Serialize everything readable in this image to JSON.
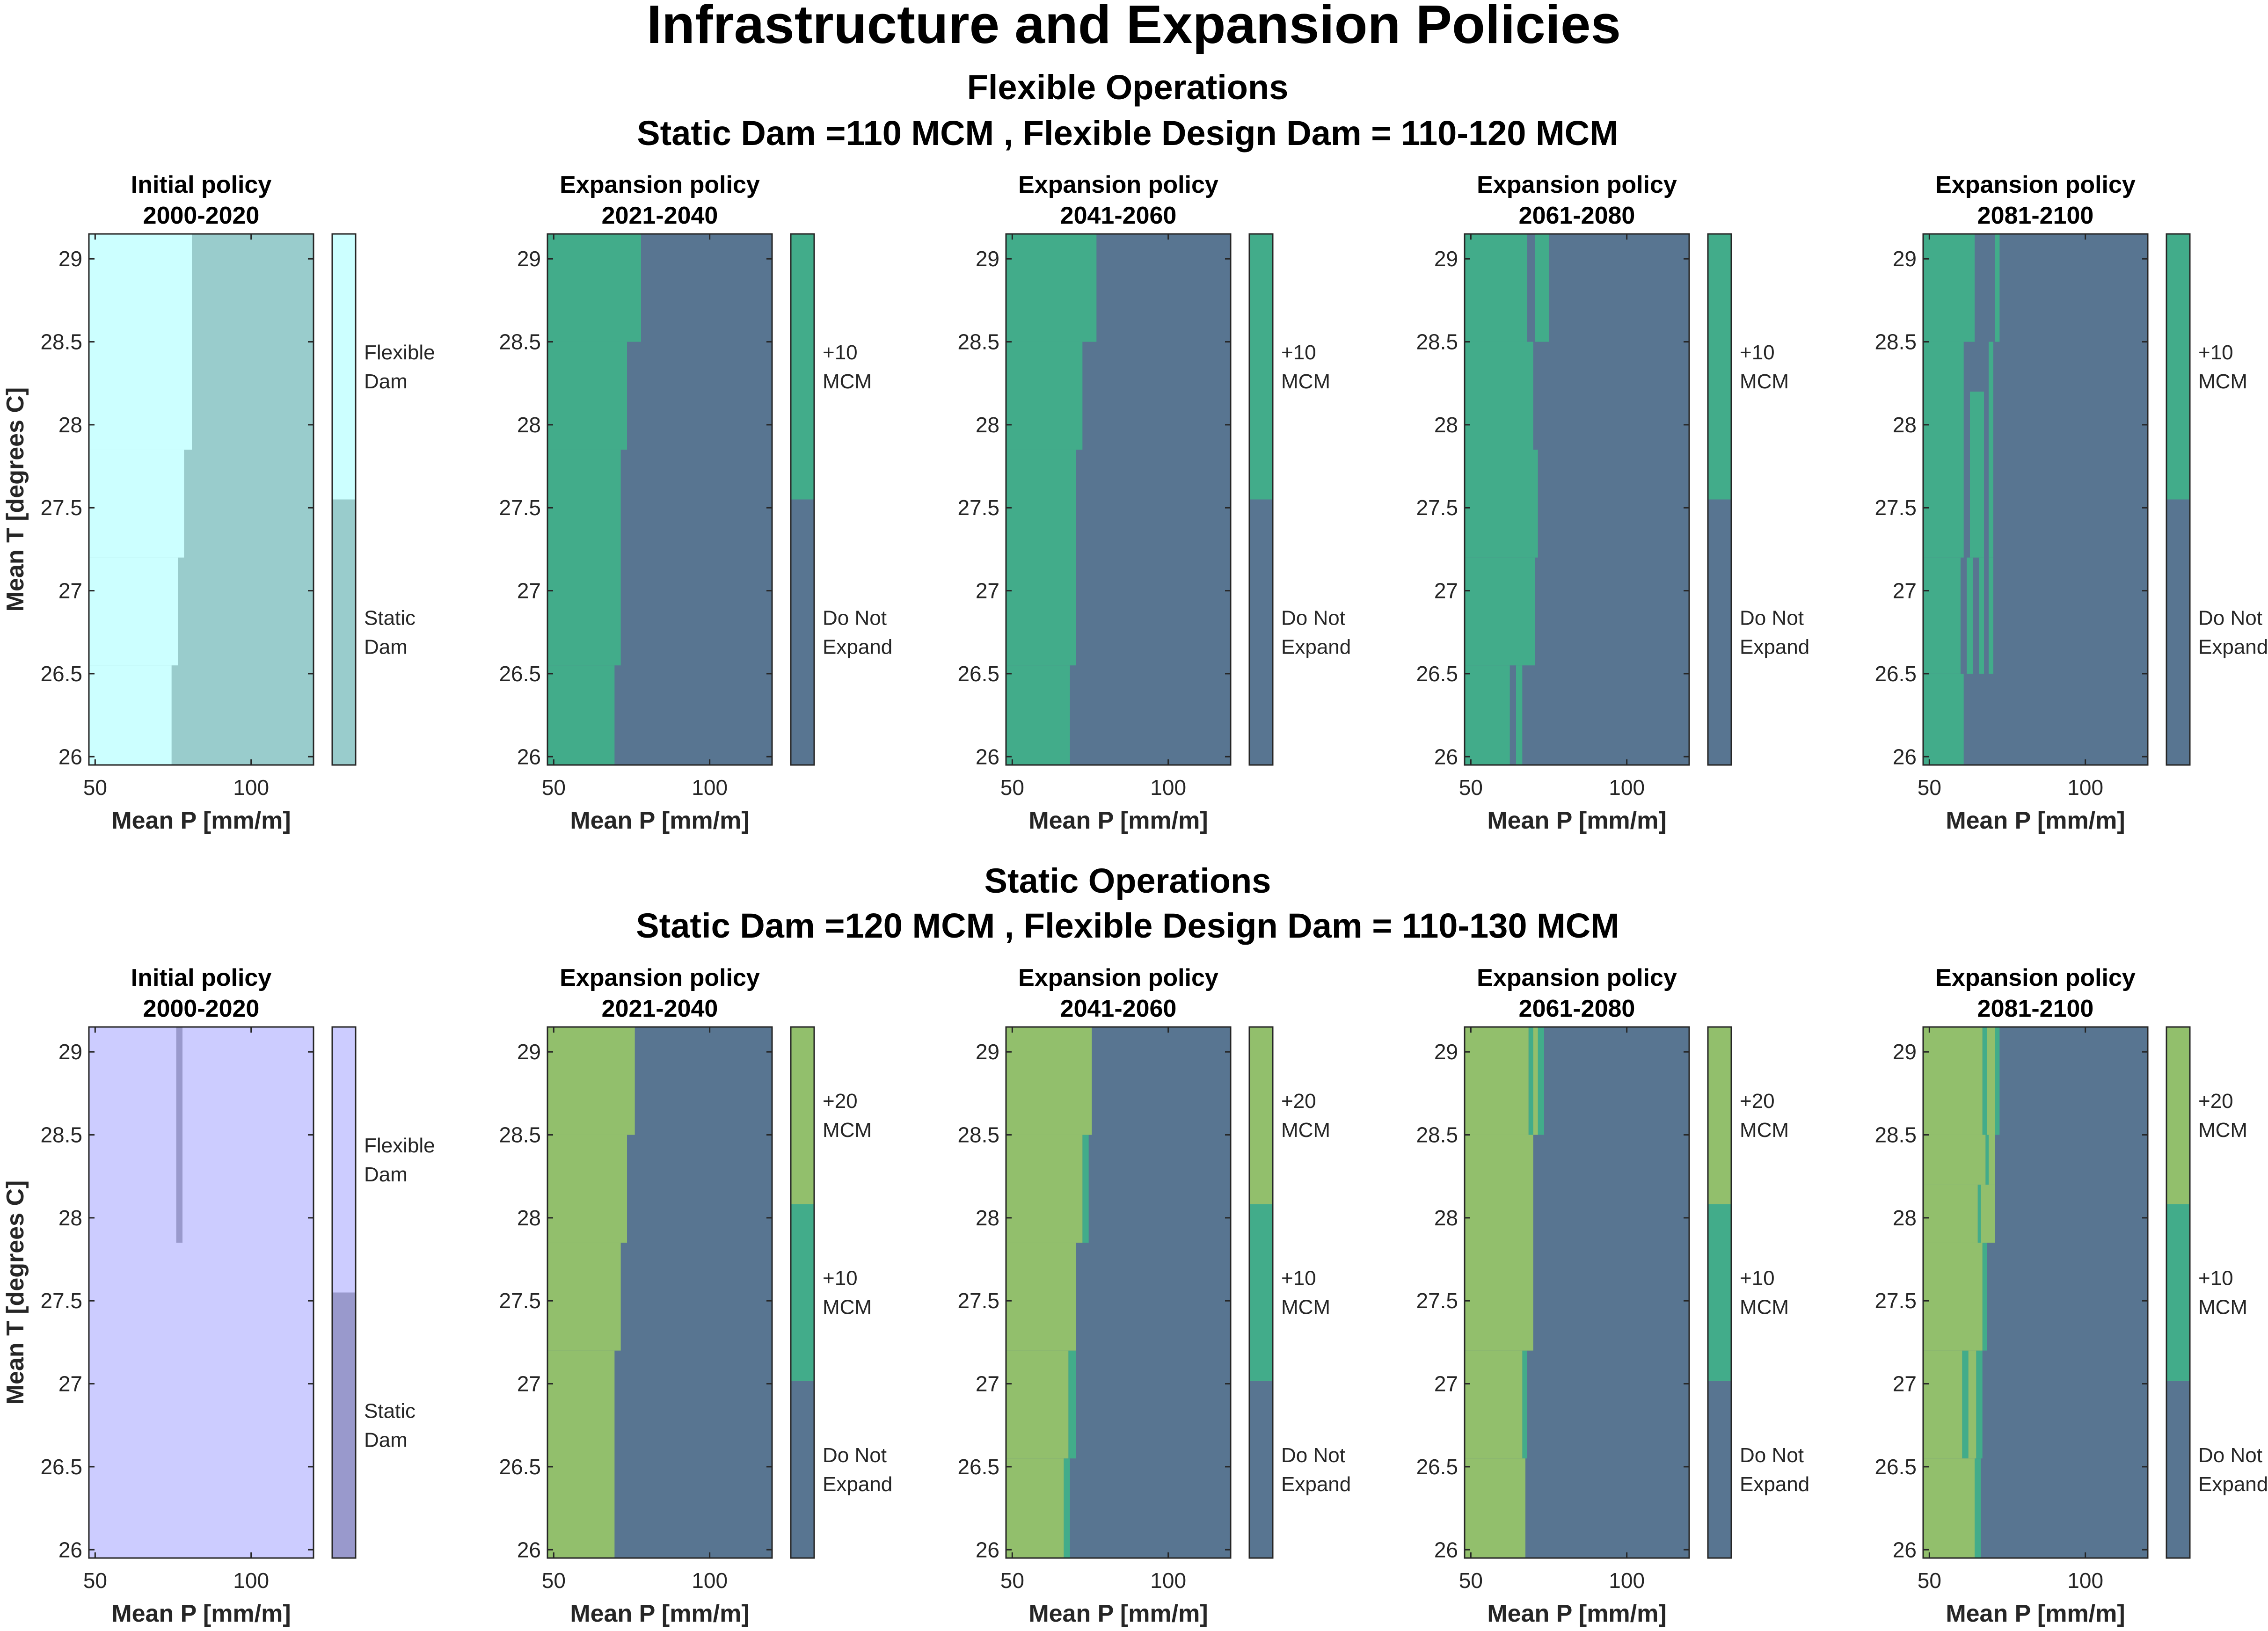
{
  "figure": {
    "title": "Infrastructure and Expansion Policies",
    "sections": [
      {
        "title1": "Flexible Operations",
        "title2": "Static Dam =110 MCM , Flexible Design Dam = 110-120 MCM"
      },
      {
        "title1": "Static Operations",
        "title2": "Static Dam =120 MCM , Flexible Design Dam = 110-130 MCM"
      }
    ]
  },
  "colors": {
    "flex_light": "#CCFFFF",
    "static_teal": "#99CCCC",
    "lavender": "#CCCCFF",
    "lavender_dark": "#9999CC",
    "plus10": "#42AC8A",
    "plus20": "#92BF6C",
    "no_expand": "#587591",
    "axis": "#262626"
  },
  "chart_data": [
    {
      "type": "heatmap",
      "row": 0,
      "col": 0,
      "title_line1": "Initial policy",
      "title_line2": "2000-2020",
      "xlabel": "Mean P [mm/m]",
      "ylabel": "Mean T [degrees C]",
      "xlim": [
        48,
        120
      ],
      "ylim": [
        25.95,
        29.15
      ],
      "xticks": [
        50,
        100
      ],
      "yticks": [
        26,
        26.5,
        27,
        27.5,
        28,
        28.5,
        29
      ],
      "legend": [
        {
          "label": "Static Dam",
          "color": "#99CCCC"
        },
        {
          "label": "Flexible Dam",
          "color": "#CCFFFF"
        }
      ],
      "background": "#99CCCC",
      "regions": [
        {
          "color": "#CCFFFF",
          "segments": [
            [
              25.95,
              26.55,
              48,
              74.5
            ],
            [
              26.55,
              27.2,
              48,
              76.5
            ],
            [
              27.2,
              27.85,
              48,
              78.5
            ],
            [
              27.85,
              29.15,
              48,
              81
            ]
          ]
        }
      ]
    },
    {
      "type": "heatmap",
      "row": 0,
      "col": 1,
      "title_line1": "Expansion policy",
      "title_line2": "2021-2040",
      "xlabel": "Mean P [mm/m]",
      "ylabel": "",
      "xlim": [
        48,
        120
      ],
      "ylim": [
        25.95,
        29.15
      ],
      "xticks": [
        50,
        100
      ],
      "yticks": [
        26,
        26.5,
        27,
        27.5,
        28,
        28.5,
        29
      ],
      "legend": [
        {
          "label": "Do Not Expand",
          "color": "#587591"
        },
        {
          "label": "+10 MCM",
          "color": "#42AC8A"
        }
      ],
      "background": "#587591",
      "regions": [
        {
          "color": "#42AC8A",
          "segments": [
            [
              25.95,
              26.55,
              48,
              69.5
            ],
            [
              26.55,
              27.85,
              48,
              71.5
            ],
            [
              27.85,
              28.5,
              48,
              73.5
            ],
            [
              28.5,
              29.15,
              48,
              78
            ]
          ]
        }
      ]
    },
    {
      "type": "heatmap",
      "row": 0,
      "col": 2,
      "title_line1": "Expansion policy",
      "title_line2": "2041-2060",
      "xlabel": "Mean P [mm/m]",
      "ylabel": "",
      "xlim": [
        48,
        120
      ],
      "ylim": [
        25.95,
        29.15
      ],
      "xticks": [
        50,
        100
      ],
      "yticks": [
        26,
        26.5,
        27,
        27.5,
        28,
        28.5,
        29
      ],
      "legend": [
        {
          "label": "Do Not Expand",
          "color": "#587591"
        },
        {
          "label": "+10 MCM",
          "color": "#42AC8A"
        }
      ],
      "background": "#587591",
      "regions": [
        {
          "color": "#42AC8A",
          "segments": [
            [
              25.95,
              26.55,
              48,
              68.5
            ],
            [
              26.55,
              27.85,
              48,
              70.5
            ],
            [
              27.85,
              28.5,
              48,
              72.5
            ],
            [
              28.5,
              29.15,
              48,
              77
            ]
          ]
        }
      ]
    },
    {
      "type": "heatmap",
      "row": 0,
      "col": 3,
      "title_line1": "Expansion policy",
      "title_line2": "2061-2080",
      "xlabel": "Mean P [mm/m]",
      "ylabel": "",
      "xlim": [
        48,
        120
      ],
      "ylim": [
        25.95,
        29.15
      ],
      "xticks": [
        50,
        100
      ],
      "yticks": [
        26,
        26.5,
        27,
        27.5,
        28,
        28.5,
        29
      ],
      "legend": [
        {
          "label": "Do Not Expand",
          "color": "#587591"
        },
        {
          "label": "+10 MCM",
          "color": "#42AC8A"
        }
      ],
      "background": "#587591",
      "regions": [
        {
          "color": "#42AC8A",
          "segments": [
            [
              25.95,
              26.55,
              48,
              62.5
            ],
            [
              25.95,
              26.55,
              64.5,
              66.5
            ],
            [
              26.55,
              27.2,
              48,
              70.5
            ],
            [
              27.2,
              28.5,
              48,
              70
            ],
            [
              27.2,
              27.85,
              68,
              71.5
            ],
            [
              28.5,
              29.15,
              48,
              68
            ],
            [
              28.5,
              29.15,
              70.5,
              75
            ]
          ]
        }
      ]
    },
    {
      "type": "heatmap",
      "row": 0,
      "col": 4,
      "title_line1": "Expansion policy",
      "title_line2": "2081-2100",
      "xlabel": "Mean P [mm/m]",
      "ylabel": "",
      "xlim": [
        48,
        120
      ],
      "ylim": [
        25.95,
        29.15
      ],
      "xticks": [
        50,
        100
      ],
      "yticks": [
        26,
        26.5,
        27,
        27.5,
        28,
        28.5,
        29
      ],
      "legend": [
        {
          "label": "Do Not Expand",
          "color": "#587591"
        },
        {
          "label": "+10 MCM",
          "color": "#42AC8A"
        }
      ],
      "background": "#587591",
      "regions": [
        {
          "color": "#42AC8A",
          "segments": [
            [
              25.95,
              26.5,
              48,
              61
            ],
            [
              26.5,
              27.2,
              48,
              60
            ],
            [
              26.5,
              27.2,
              62,
              64
            ],
            [
              26.5,
              27.2,
              66,
              67.5
            ],
            [
              26.5,
              27.2,
              69,
              70.5
            ],
            [
              27.2,
              28.5,
              48,
              61
            ],
            [
              27.2,
              28.2,
              63,
              67.5
            ],
            [
              27.2,
              28.5,
              69,
              70.5
            ],
            [
              28.5,
              29.15,
              48,
              64.5
            ],
            [
              28.5,
              29.15,
              71,
              72.5
            ]
          ]
        }
      ]
    },
    {
      "type": "heatmap",
      "row": 1,
      "col": 0,
      "title_line1": "Initial policy",
      "title_line2": "2000-2020",
      "xlabel": "Mean P [mm/m]",
      "ylabel": "Mean T [degrees C]",
      "xlim": [
        48,
        120
      ],
      "ylim": [
        25.95,
        29.15
      ],
      "xticks": [
        50,
        100
      ],
      "yticks": [
        26,
        26.5,
        27,
        27.5,
        28,
        28.5,
        29
      ],
      "legend": [
        {
          "label": "Static Dam",
          "color": "#9999CC"
        },
        {
          "label": "Flexible Dam",
          "color": "#CCCCFF"
        }
      ],
      "background": "#CCCCFF",
      "regions": [
        {
          "color": "#9999CC",
          "segments": [
            [
              27.85,
              29.15,
              76,
              78
            ]
          ]
        }
      ]
    },
    {
      "type": "heatmap",
      "row": 1,
      "col": 1,
      "title_line1": "Expansion policy",
      "title_line2": "2021-2040",
      "xlabel": "Mean P [mm/m]",
      "ylabel": "",
      "xlim": [
        48,
        120
      ],
      "ylim": [
        25.95,
        29.15
      ],
      "xticks": [
        50,
        100
      ],
      "yticks": [
        26,
        26.5,
        27,
        27.5,
        28,
        28.5,
        29
      ],
      "legend": [
        {
          "label": "Do Not Expand",
          "color": "#587591"
        },
        {
          "label": "+10 MCM",
          "color": "#42AC8A"
        },
        {
          "label": "+20 MCM",
          "color": "#92BF6C"
        }
      ],
      "background": "#587591",
      "regions": [
        {
          "color": "#92BF6C",
          "segments": [
            [
              25.95,
              27.2,
              48,
              69.5
            ],
            [
              27.2,
              27.85,
              48,
              71.5
            ],
            [
              27.85,
              28.5,
              48,
              73.5
            ],
            [
              28.5,
              29.15,
              48,
              76
            ]
          ]
        }
      ]
    },
    {
      "type": "heatmap",
      "row": 1,
      "col": 2,
      "title_line1": "Expansion policy",
      "title_line2": "2041-2060",
      "xlabel": "Mean P [mm/m]",
      "ylabel": "",
      "xlim": [
        48,
        120
      ],
      "ylim": [
        25.95,
        29.15
      ],
      "xticks": [
        50,
        100
      ],
      "yticks": [
        26,
        26.5,
        27,
        27.5,
        28,
        28.5,
        29
      ],
      "legend": [
        {
          "label": "Do Not Expand",
          "color": "#587591"
        },
        {
          "label": "+10 MCM",
          "color": "#42AC8A"
        },
        {
          "label": "+20 MCM",
          "color": "#92BF6C"
        }
      ],
      "background": "#587591",
      "regions": [
        {
          "color": "#42AC8A",
          "segments": [
            [
              25.95,
              26.55,
              66.5,
              68.5
            ],
            [
              26.55,
              27.2,
              68,
              70.5
            ],
            [
              27.85,
              28.5,
              72.5,
              74.5
            ]
          ]
        },
        {
          "color": "#92BF6C",
          "segments": [
            [
              25.95,
              26.55,
              48,
              66.5
            ],
            [
              26.55,
              27.2,
              48,
              68
            ],
            [
              27.2,
              27.85,
              48,
              70.5
            ],
            [
              27.85,
              28.5,
              48,
              72.5
            ],
            [
              28.5,
              29.15,
              48,
              75.5
            ]
          ]
        }
      ]
    },
    {
      "type": "heatmap",
      "row": 1,
      "col": 3,
      "title_line1": "Expansion policy",
      "title_line2": "2061-2080",
      "xlabel": "Mean P [mm/m]",
      "ylabel": "",
      "xlim": [
        48,
        120
      ],
      "ylim": [
        25.95,
        29.15
      ],
      "xticks": [
        50,
        100
      ],
      "yticks": [
        26,
        26.5,
        27,
        27.5,
        28,
        28.5,
        29
      ],
      "legend": [
        {
          "label": "Do Not Expand",
          "color": "#587591"
        },
        {
          "label": "+10 MCM",
          "color": "#42AC8A"
        },
        {
          "label": "+20 MCM",
          "color": "#92BF6C"
        }
      ],
      "background": "#587591",
      "regions": [
        {
          "color": "#42AC8A",
          "segments": [
            [
              26.55,
              27.2,
              66.5,
              68
            ],
            [
              28.5,
              29.15,
              68.5,
              70
            ],
            [
              28.5,
              29.15,
              71.5,
              73.5
            ]
          ]
        },
        {
          "color": "#92BF6C",
          "segments": [
            [
              25.95,
              26.55,
              48,
              67.5
            ],
            [
              26.55,
              27.2,
              48,
              66.5
            ],
            [
              27.2,
              28.5,
              48,
              70
            ],
            [
              28.5,
              29.15,
              48,
              68.5
            ],
            [
              28.5,
              29.15,
              70,
              71.5
            ]
          ]
        }
      ]
    },
    {
      "type": "heatmap",
      "row": 1,
      "col": 4,
      "title_line1": "Expansion policy",
      "title_line2": "2081-2100",
      "xlabel": "Mean P [mm/m]",
      "ylabel": "",
      "xlim": [
        48,
        120
      ],
      "ylim": [
        25.95,
        29.15
      ],
      "xticks": [
        50,
        100
      ],
      "yticks": [
        26,
        26.5,
        27,
        27.5,
        28,
        28.5,
        29
      ],
      "legend": [
        {
          "label": "Do Not Expand",
          "color": "#587591"
        },
        {
          "label": "+10 MCM",
          "color": "#42AC8A"
        },
        {
          "label": "+20 MCM",
          "color": "#92BF6C"
        }
      ],
      "background": "#587591",
      "regions": [
        {
          "color": "#42AC8A",
          "segments": [
            [
              25.95,
              26.55,
              64.5,
              66.5
            ],
            [
              26.55,
              27.2,
              60.5,
              62.5
            ],
            [
              26.55,
              27.2,
              65,
              67
            ],
            [
              27.2,
              27.85,
              67,
              68.5
            ],
            [
              27.85,
              28.2,
              65.5,
              66.5
            ],
            [
              28.2,
              28.5,
              68,
              69
            ],
            [
              28.5,
              29.15,
              67,
              68.5
            ],
            [
              28.5,
              29.15,
              71,
              72.5
            ]
          ]
        },
        {
          "color": "#92BF6C",
          "segments": [
            [
              25.95,
              26.55,
              48,
              64.5
            ],
            [
              26.55,
              27.2,
              48,
              60.5
            ],
            [
              26.55,
              27.2,
              62.5,
              65
            ],
            [
              27.2,
              27.85,
              48,
              67
            ],
            [
              27.85,
              28.2,
              48,
              65.5
            ],
            [
              27.85,
              28.2,
              66.5,
              71
            ],
            [
              28.2,
              28.5,
              48,
              68
            ],
            [
              28.2,
              28.5,
              69,
              71
            ],
            [
              28.5,
              29.15,
              48,
              67
            ],
            [
              28.5,
              29.15,
              68.5,
              71
            ]
          ]
        }
      ]
    }
  ]
}
